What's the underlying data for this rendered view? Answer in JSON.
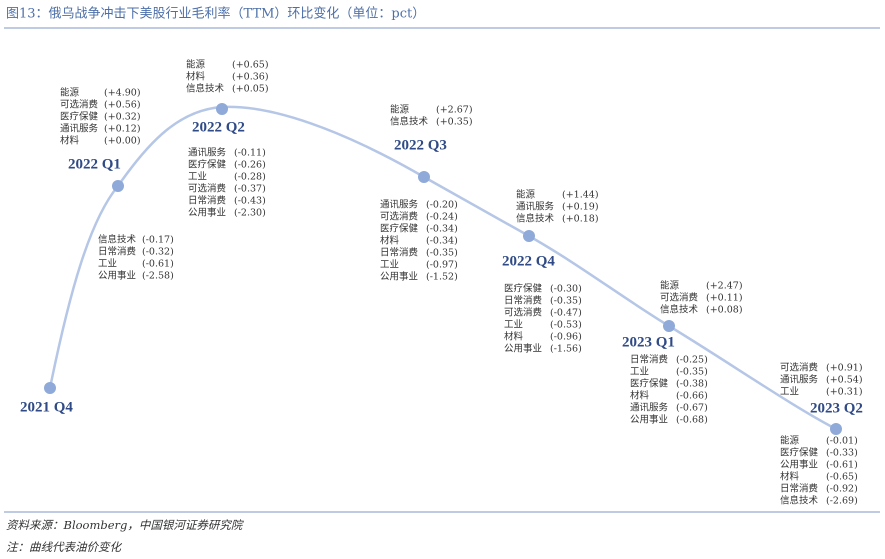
{
  "title": "图13：俄乌战争冲击下美股行业毛利率（TTM）环比变化（单位：pct）",
  "nodes": [
    {
      "label": "2021 Q4",
      "up": [],
      "down": []
    },
    {
      "label": "2022 Q1",
      "up": [
        {
          "name": "能源",
          "value": "(+4.90)"
        },
        {
          "name": "可选消费",
          "value": "(+0.56)"
        },
        {
          "name": "医疗保健",
          "value": "(+0.32)"
        },
        {
          "name": "通讯服务",
          "value": "(+0.12)"
        },
        {
          "name": "材料",
          "value": "(+0.00)"
        }
      ],
      "down": [
        {
          "name": "信息技术",
          "value": "(-0.17)"
        },
        {
          "name": "日常消费",
          "value": "(-0.32)"
        },
        {
          "name": "工业",
          "value": "(-0.61)"
        },
        {
          "name": "公用事业",
          "value": "(-2.58)"
        }
      ]
    },
    {
      "label": "2022 Q2",
      "up": [
        {
          "name": "能源",
          "value": "(+0.65)"
        },
        {
          "name": "材料",
          "value": "(+0.36)"
        },
        {
          "name": "信息技术",
          "value": "(+0.05)"
        }
      ],
      "down": [
        {
          "name": "通讯服务",
          "value": "(-0.11)"
        },
        {
          "name": "医疗保健",
          "value": "(-0.26)"
        },
        {
          "name": "工业",
          "value": "(-0.28)"
        },
        {
          "name": "可选消费",
          "value": "(-0.37)"
        },
        {
          "name": "日常消费",
          "value": "(-0.43)"
        },
        {
          "name": "公用事业",
          "value": "(-2.30)"
        }
      ]
    },
    {
      "label": "2022 Q3",
      "up": [
        {
          "name": "能源",
          "value": "(+2.67)"
        },
        {
          "name": "信息技术",
          "value": "(+0.35)"
        }
      ],
      "down": [
        {
          "name": "通讯服务",
          "value": "(-0.20)"
        },
        {
          "name": "可选消费",
          "value": "(-0.24)"
        },
        {
          "name": "医疗保健",
          "value": "(-0.34)"
        },
        {
          "name": "材料",
          "value": "(-0.34)"
        },
        {
          "name": "日常消费",
          "value": "(-0.35)"
        },
        {
          "name": "工业",
          "value": "(-0.97)"
        },
        {
          "name": "公用事业",
          "value": "(-1.52)"
        }
      ]
    },
    {
      "label": "2022 Q4",
      "up": [
        {
          "name": "能源",
          "value": "(+1.44)"
        },
        {
          "name": "通讯服务",
          "value": "(+0.19)"
        },
        {
          "name": "信息技术",
          "value": "(+0.18)"
        }
      ],
      "down": [
        {
          "name": "医疗保健",
          "value": "(-0.30)"
        },
        {
          "name": "日常消费",
          "value": "(-0.35)"
        },
        {
          "name": "可选消费",
          "value": "(-0.47)"
        },
        {
          "name": "工业",
          "value": "(-0.53)"
        },
        {
          "name": "材料",
          "value": "(-0.96)"
        },
        {
          "name": "公用事业",
          "value": "(-1.56)"
        }
      ]
    },
    {
      "label": "2023 Q1",
      "up": [
        {
          "name": "能源",
          "value": "(+2.47)"
        },
        {
          "name": "可选消费",
          "value": "(+0.11)"
        },
        {
          "name": "信息技术",
          "value": "(+0.08)"
        }
      ],
      "down": [
        {
          "name": "日常消费",
          "value": "(-0.25)"
        },
        {
          "name": "工业",
          "value": "(-0.35)"
        },
        {
          "name": "医疗保健",
          "value": "(-0.38)"
        },
        {
          "name": "材料",
          "value": "(-0.66)"
        },
        {
          "name": "通讯服务",
          "value": "(-0.67)"
        },
        {
          "name": "公用事业",
          "value": "(-0.68)"
        }
      ]
    },
    {
      "label": "2023 Q2",
      "up": [
        {
          "name": "可选消费",
          "value": "(+0.91)"
        },
        {
          "name": "通讯服务",
          "value": "(+0.54)"
        },
        {
          "name": "工业",
          "value": "(+0.31)"
        }
      ],
      "down": [
        {
          "name": "能源",
          "value": "(-0.01)"
        },
        {
          "name": "医疗保健",
          "value": "(-0.33)"
        },
        {
          "name": "公用事业",
          "value": "(-0.61)"
        },
        {
          "name": "材料",
          "value": "(-0.65)"
        },
        {
          "name": "日常消费",
          "value": "(-0.92)"
        },
        {
          "name": "信息技术",
          "value": "(-2.69)"
        }
      ]
    }
  ],
  "source": "资料来源：Bloomberg，中国银河证券研究院",
  "note": "注：曲线代表油价变化"
}
